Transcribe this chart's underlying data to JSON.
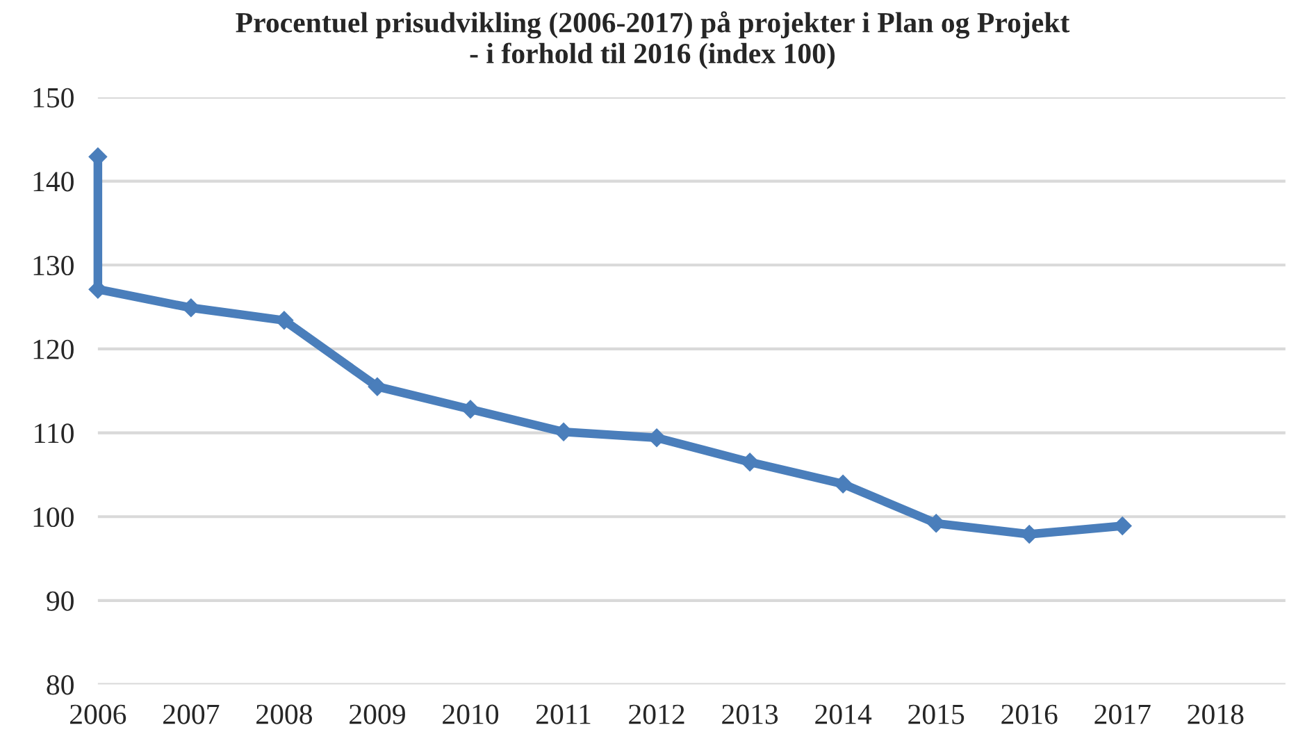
{
  "chart_data": {
    "type": "line",
    "title": "Procentuel prisudvikling (2006-2017) på projekter i Plan og Projekt\n- i forhold til 2016 (index 100)",
    "series": [
      {
        "color": "#4a7ebb",
        "x": [
          2006,
          2006,
          2007,
          2008,
          2009,
          2010,
          2011,
          2012,
          2013,
          2014,
          2015,
          2016,
          2017
        ],
        "values": [
          142.9,
          127.1,
          124.9,
          123.4,
          115.5,
          112.8,
          110.1,
          109.4,
          106.5,
          103.9,
          99.2,
          97.9,
          98.9
        ]
      }
    ],
    "xlim": [
      2006,
      2018.75
    ],
    "xticks": [
      2006,
      2007,
      2008,
      2009,
      2010,
      2011,
      2012,
      2013,
      2014,
      2015,
      2016,
      2017,
      2018
    ],
    "ylim": [
      80,
      150
    ],
    "yticks": [
      80,
      90,
      100,
      110,
      120,
      130,
      140,
      150
    ],
    "grid": "y",
    "legend": false,
    "marker": "diamond",
    "line_style": "solid"
  }
}
